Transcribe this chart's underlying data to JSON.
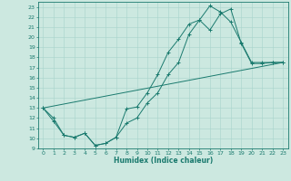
{
  "xlabel": "Humidex (Indice chaleur)",
  "bg_color": "#cce8e0",
  "line_color": "#1a7a6e",
  "grid_color": "#a8d4cc",
  "xlim": [
    -0.5,
    23.5
  ],
  "ylim": [
    9,
    23.5
  ],
  "xticks": [
    0,
    1,
    2,
    3,
    4,
    5,
    6,
    7,
    8,
    9,
    10,
    11,
    12,
    13,
    14,
    15,
    16,
    17,
    18,
    19,
    20,
    21,
    22,
    23
  ],
  "yticks": [
    9,
    10,
    11,
    12,
    13,
    14,
    15,
    16,
    17,
    18,
    19,
    20,
    21,
    22,
    23
  ],
  "line1_x": [
    0,
    1,
    2,
    3,
    4,
    5,
    6,
    7,
    8,
    9,
    10,
    11,
    12,
    13,
    14,
    15,
    16,
    17,
    18,
    19,
    20,
    21,
    22,
    23
  ],
  "line1_y": [
    13,
    11.7,
    10.3,
    10.1,
    10.5,
    9.3,
    9.5,
    10.1,
    12.9,
    13.1,
    14.5,
    16.3,
    18.5,
    19.8,
    21.3,
    21.7,
    20.7,
    22.3,
    22.8,
    19.4,
    17.4,
    17.4,
    17.5,
    17.5
  ],
  "line2_x": [
    0,
    1,
    2,
    3,
    4,
    5,
    6,
    7,
    8,
    9,
    10,
    11,
    12,
    13,
    14,
    15,
    16,
    17,
    18,
    19,
    20,
    21,
    22,
    23
  ],
  "line2_y": [
    13,
    12,
    10.3,
    10.1,
    10.5,
    9.3,
    9.5,
    10.1,
    11.5,
    12.0,
    13.5,
    14.5,
    16.3,
    17.5,
    20.3,
    21.7,
    23.1,
    22.5,
    21.5,
    19.5,
    17.5,
    17.5,
    17.5,
    17.5
  ],
  "line3_x": [
    0,
    23
  ],
  "line3_y": [
    13,
    17.5
  ]
}
